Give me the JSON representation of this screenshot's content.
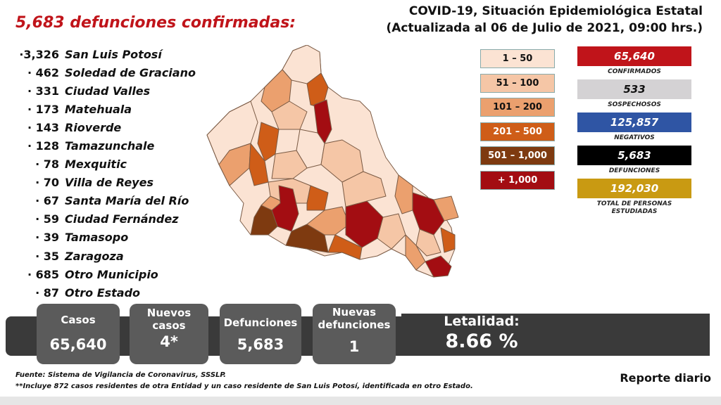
{
  "headline": "5,683 defunciones confirmadas:",
  "title": {
    "line1": "COVID-19, Situación Epidemiológica Estatal",
    "line2": "(Actualizada al 06 de Julio de 2021, 09:00 hrs.)"
  },
  "municipalities": [
    {
      "count": "·3,326",
      "name": "San Luis Potosí"
    },
    {
      "count": "· 462",
      "name": "Soledad de Graciano"
    },
    {
      "count": "· 331",
      "name": "Ciudad Valles"
    },
    {
      "count": "· 173",
      "name": "Matehuala"
    },
    {
      "count": "· 143",
      "name": "Rioverde"
    },
    {
      "count": "· 128",
      "name": "Tamazunchale"
    },
    {
      "count": "· 78",
      "name": "Mexquitic"
    },
    {
      "count": "· 70",
      "name": "Villa de Reyes"
    },
    {
      "count": "· 67",
      "name": "Santa María del Río"
    },
    {
      "count": "· 59",
      "name": "Ciudad Fernández"
    },
    {
      "count": "· 39",
      "name": "Tamasopo"
    },
    {
      "count": "· 35",
      "name": "Zaragoza"
    },
    {
      "count": "· 685",
      "name": "Otro Municipio"
    },
    {
      "count": "· 87",
      "name": "Otro Estado"
    }
  ],
  "legend": [
    {
      "label": "1 – 50",
      "color": "#fbe3d3",
      "text_color": "#111111"
    },
    {
      "label": "51 – 100",
      "color": "#f5c6a6",
      "text_color": "#111111"
    },
    {
      "label": "101 – 200",
      "color": "#eba06e",
      "text_color": "#111111"
    },
    {
      "label": "201 – 500",
      "color": "#cf5d18",
      "text_color": "#ffffff"
    },
    {
      "label": "501 – 1,000",
      "color": "#7e3a10",
      "text_color": "#ffffff"
    },
    {
      "label": "+ 1,000",
      "color": "#a30d12",
      "text_color": "#ffffff"
    }
  ],
  "stats": {
    "confirmados": {
      "value": "65,640",
      "label": "CONFIRMADOS",
      "color": "#c0141a",
      "text_color": "#ffffff"
    },
    "sospechosos": {
      "value": "533",
      "label": "SOSPECHOSOS",
      "color": "#d4d2d4",
      "text_color": "#111111"
    },
    "negativos": {
      "value": "125,857",
      "label": "NEGATIVOS",
      "color": "#2f55a4",
      "text_color": "#ffffff"
    },
    "defunciones": {
      "value": "5,683",
      "label": "DEFUNCIONES",
      "color": "#000000",
      "text_color": "#ffffff"
    },
    "estudiadas": {
      "value": "192,030",
      "label": "TOTAL DE PERSONAS ESTUDIADAS",
      "color": "#c99a12",
      "text_color": "#ffffff"
    }
  },
  "cards": {
    "casos": {
      "label": "Casos",
      "value": "65,640"
    },
    "nuevos_casos": {
      "label": "Nuevos casos",
      "value": "4*"
    },
    "defunciones": {
      "label": "Defunciones",
      "value": "5,683"
    },
    "nuevas_defunciones": {
      "label": "Nuevas defunciones",
      "value": "1"
    },
    "letalidad": {
      "label": "Letalidad:",
      "value": "8.66 %"
    }
  },
  "footnotes": {
    "source": "Fuente: Sistema de Vigilancia de Coronavirus, SSSLP.",
    "note": "**Incluye 872 casos residentes de otra Entidad y un caso residente de San Luis Potosí, identificada en otro Estado."
  },
  "report_label": "Reporte diario"
}
